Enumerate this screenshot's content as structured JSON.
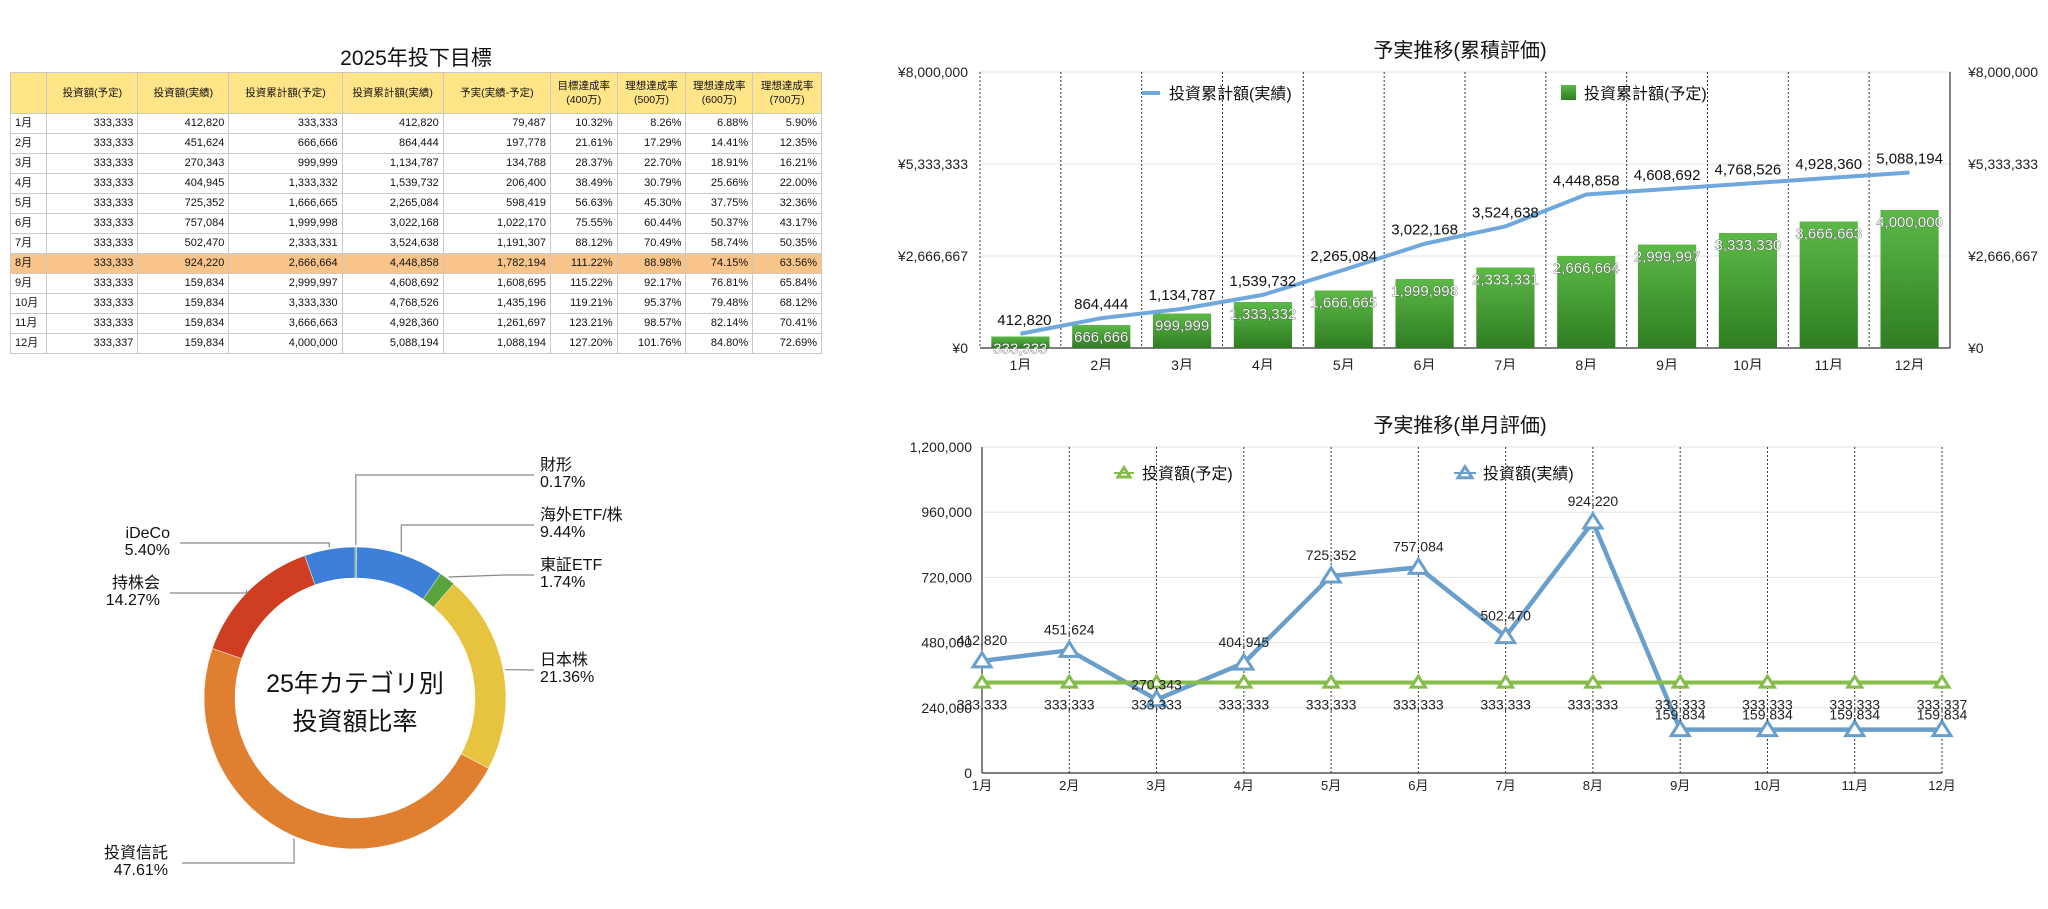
{
  "table": {
    "title": "2025年投下目標",
    "headers": [
      "",
      "投資額(予定)",
      "投資額(実績)",
      "投資累計額(予定)",
      "投資累計額(実績)",
      "予実(実績-予定)",
      "目標達成率\n(400万)",
      "理想達成率\n(500万)",
      "理想達成率\n(600万)",
      "理想達成率\n(700万)"
    ],
    "highlight_row": 7,
    "rows": [
      [
        "1月",
        "333,333",
        "412,820",
        "333,333",
        "412,820",
        "79,487",
        "10.32%",
        "8.26%",
        "6.88%",
        "5.90%"
      ],
      [
        "2月",
        "333,333",
        "451,624",
        "666,666",
        "864,444",
        "197,778",
        "21.61%",
        "17.29%",
        "14.41%",
        "12.35%"
      ],
      [
        "3月",
        "333,333",
        "270,343",
        "999,999",
        "1,134,787",
        "134,788",
        "28.37%",
        "22.70%",
        "18.91%",
        "16.21%"
      ],
      [
        "4月",
        "333,333",
        "404,945",
        "1,333,332",
        "1,539,732",
        "206,400",
        "38.49%",
        "30.79%",
        "25.66%",
        "22.00%"
      ],
      [
        "5月",
        "333,333",
        "725,352",
        "1,666,665",
        "2,265,084",
        "598,419",
        "56.63%",
        "45.30%",
        "37.75%",
        "32.36%"
      ],
      [
        "6月",
        "333,333",
        "757,084",
        "1,999,998",
        "3,022,168",
        "1,022,170",
        "75.55%",
        "60.44%",
        "50.37%",
        "43.17%"
      ],
      [
        "7月",
        "333,333",
        "502,470",
        "2,333,331",
        "3,524,638",
        "1,191,307",
        "88.12%",
        "70.49%",
        "58.74%",
        "50.35%"
      ],
      [
        "8月",
        "333,333",
        "924,220",
        "2,666,664",
        "4,448,858",
        "1,782,194",
        "111.22%",
        "88.98%",
        "74.15%",
        "63.56%"
      ],
      [
        "9月",
        "333,333",
        "159,834",
        "2,999,997",
        "4,608,692",
        "1,608,695",
        "115.22%",
        "92.17%",
        "76.81%",
        "65.84%"
      ],
      [
        "10月",
        "333,333",
        "159,834",
        "3,333,330",
        "4,768,526",
        "1,435,196",
        "119.21%",
        "95.37%",
        "79.48%",
        "68.12%"
      ],
      [
        "11月",
        "333,333",
        "159,834",
        "3,666,663",
        "4,928,360",
        "1,261,697",
        "123.21%",
        "98.57%",
        "82.14%",
        "70.41%"
      ],
      [
        "12月",
        "333,337",
        "159,834",
        "4,000,000",
        "5,088,194",
        "1,088,194",
        "127.20%",
        "101.76%",
        "84.80%",
        "72.69%"
      ]
    ]
  },
  "chart_data": [
    {
      "type": "bar",
      "title": "予実推移(累積評価)",
      "categories": [
        "1月",
        "2月",
        "3月",
        "4月",
        "5月",
        "6月",
        "7月",
        "8月",
        "9月",
        "10月",
        "11月",
        "12月"
      ],
      "ylim": [
        0,
        8000000
      ],
      "yticks": [
        "¥0",
        "¥2,666,667",
        "¥5,333,333",
        "¥8,000,000"
      ],
      "grid": true,
      "legend_position": "top",
      "series": [
        {
          "name": "投資累計額(予定)",
          "type": "bar",
          "color": "#46a034",
          "values": [
            333333,
            666666,
            999999,
            1333332,
            1666665,
            1999998,
            2333331,
            2666664,
            2999997,
            3333330,
            3666663,
            4000000
          ],
          "labels": [
            "333,333",
            "666,666",
            "999,999",
            "1,333,332",
            "1,666,665",
            "1,999,998",
            "2,333,331",
            "2,666,664",
            "2,999,997",
            "3,333,330",
            "3,666,663",
            "4,000,000"
          ]
        },
        {
          "name": "投資累計額(実績)",
          "type": "line",
          "color": "#6fa8dc",
          "values": [
            412820,
            864444,
            1134787,
            1539732,
            2265084,
            3022168,
            3524638,
            4448858,
            4608692,
            4768526,
            4928360,
            5088194
          ],
          "labels": [
            "412,820",
            "864,444",
            "1,134,787",
            "1,539,732",
            "2,265,084",
            "3,022,168",
            "3,524,638",
            "4,448,858",
            "4,608,692",
            "4,768,526",
            "4,928,360",
            "5,088,194"
          ]
        }
      ]
    },
    {
      "type": "line",
      "title": "予実推移(単月評価)",
      "categories": [
        "1月",
        "2月",
        "3月",
        "4月",
        "5月",
        "6月",
        "7月",
        "8月",
        "9月",
        "10月",
        "11月",
        "12月"
      ],
      "ylim": [
        0,
        1200000
      ],
      "yticks": [
        "0",
        "240,000",
        "480,000",
        "720,000",
        "960,000",
        "1,200,000"
      ],
      "grid": true,
      "legend_position": "top",
      "series": [
        {
          "name": "投資額(予定)",
          "color": "#86bd4a",
          "values": [
            333333,
            333333,
            333333,
            333333,
            333333,
            333333,
            333333,
            333333,
            333333,
            333333,
            333333,
            333337
          ],
          "labels": [
            "333,333",
            "333,333",
            "333,333",
            "333,333",
            "333,333",
            "333,333",
            "333,333",
            "333,333",
            "333,333",
            "333,333",
            "333,333",
            "333,337"
          ]
        },
        {
          "name": "投資額(実績)",
          "color": "#6a9fcb",
          "values": [
            412820,
            451624,
            270343,
            404945,
            725352,
            757084,
            502470,
            924220,
            159834,
            159834,
            159834,
            159834
          ],
          "labels": [
            "412,820",
            "451,624",
            "270,343",
            "404,945",
            "725,352",
            "757,084",
            "502,470",
            "924,220",
            "159,834",
            "159,834",
            "159,834",
            "159,834"
          ]
        }
      ]
    },
    {
      "type": "pie",
      "title": "25年カテゴリ別\n投資額比率",
      "donut": true,
      "slices": [
        {
          "label": "財形",
          "value": 0.17,
          "pct": "0.17%",
          "color": "#5aa03c"
        },
        {
          "label": "海外ETF/株",
          "value": 9.44,
          "pct": "9.44%",
          "color": "#3d80d8"
        },
        {
          "label": "東証ETF",
          "value": 1.74,
          "pct": "1.74%",
          "color": "#59a43c"
        },
        {
          "label": "日本株",
          "value": 21.36,
          "pct": "21.36%",
          "color": "#e6c43f"
        },
        {
          "label": "投資信託",
          "value": 47.61,
          "pct": "47.61%",
          "color": "#e07f30"
        },
        {
          "label": "持株会",
          "value": 14.27,
          "pct": "14.27%",
          "color": "#cf3d22"
        },
        {
          "label": "iDeCo",
          "value": 5.4,
          "pct": "5.40%",
          "color": "#3d7fd8"
        }
      ]
    }
  ]
}
